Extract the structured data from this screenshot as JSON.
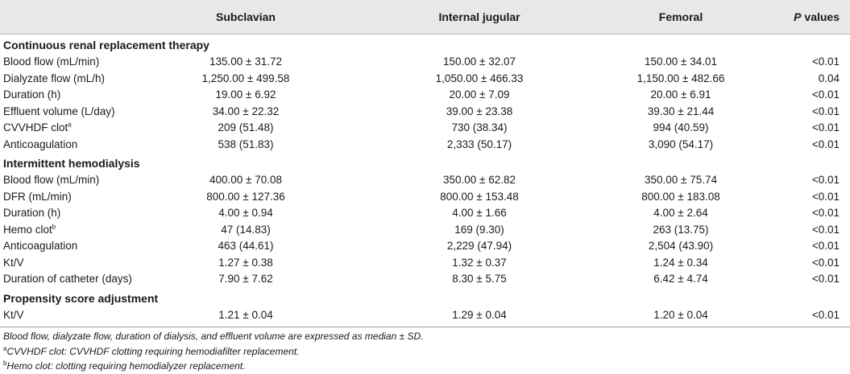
{
  "table": {
    "headers": {
      "label": "",
      "subclavian": "Subclavian",
      "internal_jugular": "Internal jugular",
      "femoral": "Femoral",
      "p_values_italic": "P",
      "p_values_rest": " values"
    },
    "sections": [
      {
        "title": "Continuous renal replacement therapy",
        "rows": [
          {
            "label": "Blood flow (mL/min)",
            "sup": "",
            "subclavian": "135.00 ± 31.72",
            "internal_jugular": "150.00 ± 32.07",
            "femoral": "150.00 ± 34.01",
            "p": "<0.01"
          },
          {
            "label": "Dialyzate flow (mL/h)",
            "sup": "",
            "subclavian": "1,250.00 ± 499.58",
            "internal_jugular": "1,050.00 ± 466.33",
            "femoral": "1,150.00 ± 482.66",
            "p": "0.04"
          },
          {
            "label": "Duration (h)",
            "sup": "",
            "subclavian": "19.00 ± 6.92",
            "internal_jugular": "20.00 ± 7.09",
            "femoral": "20.00 ± 6.91",
            "p": "<0.01"
          },
          {
            "label": "Effluent volume (L/day)",
            "sup": "",
            "subclavian": "34.00 ± 22.32",
            "internal_jugular": "39.00 ± 23.38",
            "femoral": "39.30 ± 21.44",
            "p": "<0.01"
          },
          {
            "label": "CVVHDF clot",
            "sup": "a",
            "subclavian": "209 (51.48)",
            "internal_jugular": "730 (38.34)",
            "femoral": "994 (40.59)",
            "p": "<0.01"
          },
          {
            "label": "Anticoagulation",
            "sup": "",
            "subclavian": "538 (51.83)",
            "internal_jugular": "2,333 (50.17)",
            "femoral": "3,090 (54.17)",
            "p": "<0.01"
          }
        ]
      },
      {
        "title": "Intermittent hemodialysis",
        "rows": [
          {
            "label": "Blood flow (mL/min)",
            "sup": "",
            "subclavian": "400.00 ± 70.08",
            "internal_jugular": "350.00 ± 62.82",
            "femoral": "350.00 ± 75.74",
            "p": "<0.01"
          },
          {
            "label": "DFR (mL/min)",
            "sup": "",
            "subclavian": "800.00 ± 127.36",
            "internal_jugular": "800.00 ± 153.48",
            "femoral": "800.00 ± 183.08",
            "p": "<0.01"
          },
          {
            "label": "Duration (h)",
            "sup": "",
            "subclavian": "4.00 ± 0.94",
            "internal_jugular": "4.00 ± 1.66",
            "femoral": "4.00 ± 2.64",
            "p": "<0.01"
          },
          {
            "label": "Hemo clot",
            "sup": "b",
            "subclavian": "47 (14.83)",
            "internal_jugular": "169 (9.30)",
            "femoral": "263 (13.75)",
            "p": "<0.01"
          },
          {
            "label": "Anticoagulation",
            "sup": "",
            "subclavian": "463 (44.61)",
            "internal_jugular": "2,229 (47.94)",
            "femoral": "2,504 (43.90)",
            "p": "<0.01"
          },
          {
            "label": "Kt/V",
            "sup": "",
            "subclavian": "1.27 ± 0.38",
            "internal_jugular": "1.32 ± 0.37",
            "femoral": "1.24 ± 0.34",
            "p": "<0.01"
          },
          {
            "label": "Duration of catheter (days)",
            "sup": "",
            "subclavian": "7.90 ± 7.62",
            "internal_jugular": "8.30 ± 5.75",
            "femoral": "6.42 ± 4.74",
            "p": "<0.01"
          }
        ]
      },
      {
        "title": "Propensity score adjustment",
        "rows": [
          {
            "label": "Kt/V",
            "sup": "",
            "subclavian": "1.21 ± 0.04",
            "internal_jugular": "1.29 ± 0.04",
            "femoral": "1.20 ± 0.04",
            "p": "<0.01"
          }
        ]
      }
    ],
    "footnotes": [
      {
        "sup": "",
        "text": "Blood flow, dialyzate flow, duration of dialysis, and effluent volume are expressed as median ± SD."
      },
      {
        "sup": "a",
        "text": "CVVHDF clot: CVVHDF clotting requiring hemodiafilter replacement."
      },
      {
        "sup": "b",
        "text": "Hemo clot: clotting requiring hemodialyzer replacement."
      }
    ]
  },
  "colors": {
    "header_background": "#e8e8e8",
    "text": "#1a1a1a",
    "rule": "#9a9a9a"
  }
}
